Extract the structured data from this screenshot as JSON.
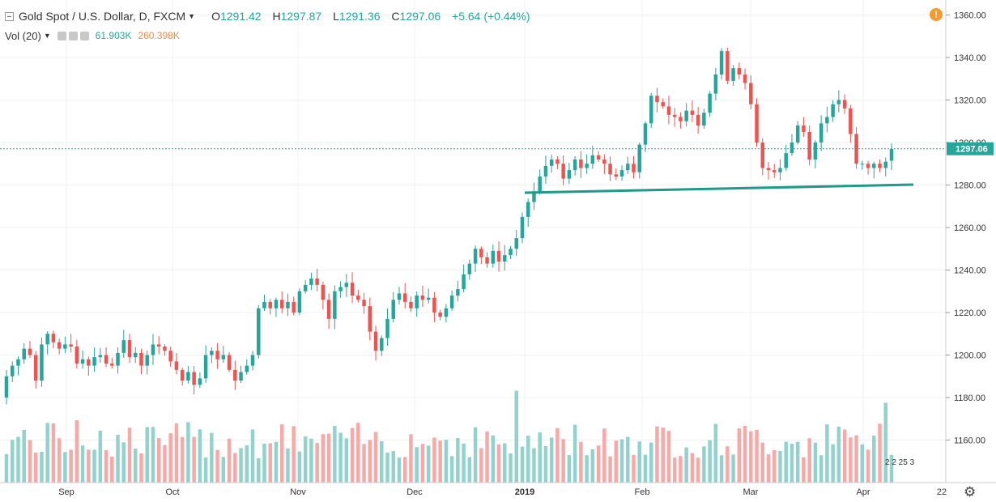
{
  "legend": {
    "symbol": "Gold Spot / U.S. Dollar, D, FXCM",
    "o_label": "O",
    "o": "1291.42",
    "h_label": "H",
    "h": "1297.87",
    "l_label": "L",
    "l": "1291.36",
    "c_label": "C",
    "c": "1297.06",
    "change": "+5.64 (+0.44%)",
    "vol_label": "Vol (20)",
    "vol_value": "61.903K",
    "vol_ma": "260.398K"
  },
  "price_label": "1297.06",
  "badge_text": "2 2 25 3",
  "colors": {
    "up": "#26a69a",
    "down": "#ef5350",
    "up_vol": "#92d2cc",
    "down_vol": "#f7a9a7",
    "grid": "#eef0f3",
    "line": "#1f9a8a"
  },
  "chart_data": {
    "type": "candlestick",
    "title": "Gold Spot / U.S. Dollar, D, FXCM",
    "y_ticks": [
      "1360.00",
      "1340.00",
      "1320.00",
      "1300.00",
      "1280.00",
      "1260.00",
      "1240.00",
      "1220.00",
      "1200.00",
      "1180.00",
      "1160.00"
    ],
    "x_labels": [
      "Sep",
      "Oct",
      "Nov",
      "Dec",
      "2019",
      "Feb",
      "Mar",
      "Apr",
      "22"
    ],
    "ylim": [
      1140,
      1364
    ],
    "last_price": 1297.06,
    "closes": [
      1190,
      1195,
      1198,
      1203,
      1200,
      1188,
      1205,
      1210,
      1206,
      1203,
      1205,
      1204,
      1196,
      1198,
      1195,
      1199,
      1200,
      1196,
      1195,
      1201,
      1207,
      1199,
      1201,
      1195,
      1200,
      1205,
      1204,
      1202,
      1197,
      1193,
      1188,
      1192,
      1186,
      1189,
      1200,
      1202,
      1198,
      1200,
      1193,
      1188,
      1192,
      1195,
      1200,
      1222,
      1225,
      1222,
      1226,
      1222,
      1225,
      1220,
      1230,
      1233,
      1236,
      1233,
      1226,
      1217,
      1230,
      1232,
      1234,
      1228,
      1226,
      1223,
      1211,
      1202,
      1208,
      1217,
      1226,
      1229,
      1225,
      1222,
      1228,
      1226,
      1227,
      1220,
      1218,
      1222,
      1228,
      1231,
      1238,
      1243,
      1250,
      1246,
      1243,
      1249,
      1244,
      1247,
      1250,
      1255,
      1265,
      1272,
      1277,
      1284,
      1289,
      1292,
      1290,
      1283,
      1287,
      1292,
      1288,
      1290,
      1294,
      1292,
      1290,
      1285,
      1284,
      1287,
      1290,
      1286,
      1299,
      1309,
      1322,
      1319,
      1317,
      1313,
      1312,
      1310,
      1315,
      1313,
      1308,
      1314,
      1323,
      1332,
      1343,
      1329,
      1335,
      1332,
      1328,
      1318,
      1300,
      1288,
      1287,
      1286,
      1288,
      1295,
      1300,
      1308,
      1305,
      1292,
      1300,
      1309,
      1312,
      1318,
      1320,
      1316,
      1304,
      1290,
      1290,
      1288,
      1290,
      1288,
      1291,
      1297
    ]
  }
}
